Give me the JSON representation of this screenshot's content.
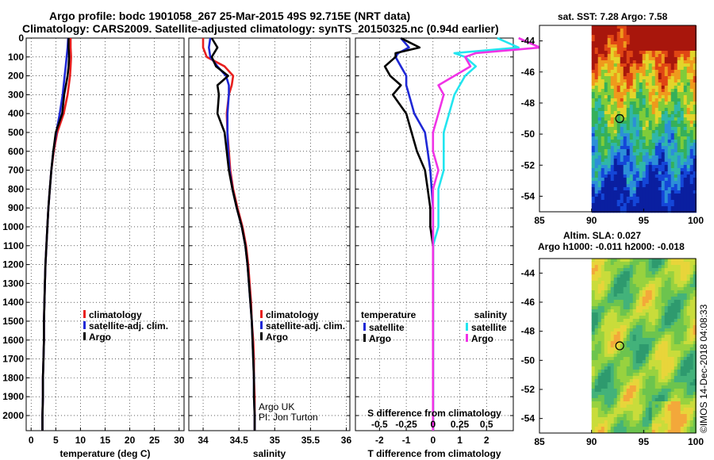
{
  "title": {
    "line1": "Argo profile: bodc 1901058_267 25-Mar-2015 49S 92.715E (NRT data)",
    "line2": "Climatology: CARS2009. Satellite-adjusted climatology: synTS_20150325.nc (0.94d earlier)"
  },
  "colors": {
    "climatology": "#e8201f",
    "satellite": "#1f28d6",
    "argo": "#000000",
    "sat_salinity": "#22e5ef",
    "argo_salinity": "#f032e6"
  },
  "maps": {
    "sst_title": "sat. SST: 7.28 Argo: 7.58",
    "sla_title_1": "Altim. SLA: 0.027",
    "sla_title_2": "Argo h1000: -0.011 h2000: -0.018",
    "lat_ticks": [
      -44,
      -46,
      -48,
      -50,
      -52,
      -54
    ],
    "lon_ticks": [
      85,
      90,
      95,
      100
    ],
    "lat_range": [
      -43,
      -55
    ],
    "lon_range": [
      85,
      100
    ],
    "float_position": {
      "lon": 92.7,
      "lat": -49
    }
  },
  "credit": "©IMOS 14-Dec-2018 04:08:33",
  "chart_data": [
    {
      "type": "line",
      "name": "temperature",
      "xlabel": "temperature (deg C)",
      "ylabel": "",
      "xlim": [
        -1,
        31
      ],
      "ylim": [
        2080,
        0
      ],
      "x_ticks": [
        0,
        5,
        10,
        15,
        20,
        25,
        30
      ],
      "y_ticks": [
        0,
        100,
        200,
        300,
        400,
        500,
        600,
        700,
        800,
        900,
        1000,
        1100,
        1200,
        1300,
        1400,
        1500,
        1600,
        1700,
        1800,
        1900,
        2000
      ],
      "grid": true,
      "legend": [
        "climatology",
        "satellite-adj. clim.",
        "Argo"
      ],
      "legend_position": "bottom-right",
      "depth": [
        0,
        50,
        100,
        150,
        200,
        300,
        400,
        500,
        600,
        700,
        800,
        900,
        1000,
        1100,
        1200,
        1300,
        1400,
        1500,
        1600,
        1700,
        1800,
        1900,
        2000,
        2080
      ],
      "series": [
        {
          "name": "climatology",
          "values": [
            8.0,
            8.0,
            8.1,
            8.0,
            7.9,
            7.4,
            6.6,
            5.3,
            4.6,
            4.1,
            3.8,
            3.5,
            3.3,
            3.1,
            2.9,
            2.8,
            2.7,
            2.6,
            2.6,
            2.5,
            2.4,
            2.4,
            2.3,
            2.3
          ]
        },
        {
          "name": "satellite-adj. clim.",
          "values": [
            7.5,
            7.4,
            7.2,
            7.0,
            6.8,
            6.4,
            5.8,
            5.1,
            4.5,
            4.1,
            3.8,
            3.5,
            3.3,
            3.1,
            2.9,
            2.8,
            2.7,
            2.6,
            2.6,
            2.5,
            2.4,
            2.4,
            2.3,
            2.3
          ]
        },
        {
          "name": "Argo",
          "values": [
            7.6,
            7.6,
            7.7,
            7.6,
            7.4,
            6.7,
            6.3,
            5.0,
            4.5,
            4.1,
            3.8,
            3.5,
            3.3,
            3.1,
            2.9,
            2.8,
            2.7,
            2.6,
            2.6,
            2.5,
            2.4,
            2.4,
            2.3,
            2.3
          ]
        }
      ]
    },
    {
      "type": "line",
      "name": "salinity",
      "xlabel": "salinity",
      "xlim": [
        33.8,
        36.05
      ],
      "ylim": [
        2080,
        0
      ],
      "x_ticks": [
        34,
        34.5,
        35,
        35.5,
        36
      ],
      "grid": true,
      "legend": [
        "climatology",
        "satellite-adj. clim.",
        "Argo"
      ],
      "legend_position": "bottom-right",
      "annotation": [
        "Argo UK",
        "PI: Jon Turton"
      ],
      "depth": [
        0,
        50,
        100,
        150,
        200,
        250,
        300,
        400,
        500,
        600,
        700,
        800,
        900,
        1000,
        1100,
        1200,
        1300,
        1400,
        1500,
        1600,
        1700,
        1800,
        1900,
        2000,
        2080
      ],
      "series": [
        {
          "name": "climatology",
          "values": [
            34.0,
            34.0,
            34.05,
            34.3,
            34.42,
            34.4,
            34.36,
            34.33,
            34.34,
            34.36,
            34.38,
            34.42,
            34.48,
            34.55,
            34.6,
            34.63,
            34.65,
            34.67,
            34.68,
            34.7,
            34.71,
            34.71,
            34.72,
            34.72,
            34.72
          ]
        },
        {
          "name": "satellite-adj. clim.",
          "values": [
            34.1,
            34.08,
            34.1,
            34.2,
            34.32,
            34.36,
            34.36,
            34.34,
            34.34,
            34.35,
            34.37,
            34.41,
            34.47,
            34.54,
            34.59,
            34.62,
            34.64,
            34.66,
            34.68,
            34.69,
            34.7,
            34.71,
            34.71,
            34.72,
            34.72
          ]
        },
        {
          "name": "Argo",
          "values": [
            34.12,
            34.2,
            34.12,
            34.18,
            34.35,
            34.2,
            34.22,
            34.2,
            34.3,
            34.33,
            34.36,
            34.41,
            34.47,
            34.54,
            34.59,
            34.62,
            34.64,
            34.66,
            34.68,
            34.69,
            34.7,
            34.71,
            34.71,
            34.72,
            34.72
          ]
        }
      ]
    },
    {
      "type": "line",
      "name": "difference",
      "xlabel": "T difference from climatology",
      "xlabel_top": "S difference from climatology",
      "xlim": [
        -2.9,
        3.0
      ],
      "ylim": [
        2080,
        0
      ],
      "x_ticks": [
        -2,
        -1,
        0,
        1,
        2
      ],
      "x_ticks_top": [
        "-0.5",
        "-0.25",
        "0",
        "0.25",
        "0.5"
      ],
      "grid": true,
      "legend_temperature_heading": "temperature",
      "legend_salinity_heading": "salinity",
      "legend_temperature": [
        "satellite",
        "Argo"
      ],
      "legend_salinity": [
        "satellite",
        "Argo"
      ],
      "depth": [
        0,
        50,
        80,
        100,
        150,
        200,
        250,
        300,
        400,
        500,
        600,
        700,
        800,
        900,
        1000,
        1100,
        1200,
        1300,
        1400,
        1500,
        1600,
        1700,
        1800,
        1900,
        2000,
        2080
      ],
      "series": [
        {
          "name": "temperature satellite",
          "values": [
            -1.2,
            -0.9,
            -1.3,
            -1.4,
            -1.2,
            -1.0,
            -1.0,
            -0.9,
            -0.7,
            -0.3,
            -0.2,
            -0.1,
            -0.05,
            0,
            0,
            0,
            0,
            0,
            0,
            0,
            0,
            0,
            0,
            0,
            0,
            0
          ]
        },
        {
          "name": "temperature Argo",
          "values": [
            -1.2,
            -0.5,
            -1.4,
            -1.4,
            -1.8,
            -1.6,
            -1.2,
            -1.5,
            -1.0,
            -0.8,
            -0.6,
            -0.3,
            -0.2,
            -0.1,
            -0.1,
            0,
            0,
            0,
            0,
            0,
            0,
            0,
            0,
            0,
            0,
            0
          ]
        },
        {
          "name": "salinity satellite",
          "values": [
            0.6,
            0.8,
            0.2,
            0.3,
            0.4,
            0.3,
            0.25,
            0.2,
            0.15,
            0.1,
            0.1,
            0.1,
            0.05,
            0.05,
            0.05,
            0,
            0,
            0,
            0,
            0,
            0,
            0,
            0,
            0,
            0,
            0
          ]
        },
        {
          "name": "salinity Argo",
          "values": [
            0.8,
            1.0,
            0.4,
            0.3,
            0.35,
            0.2,
            0.05,
            0.1,
            0.05,
            0.0,
            0.0,
            0.05,
            0.0,
            0.0,
            0.0,
            0,
            0,
            0,
            0,
            0,
            0,
            0,
            0,
            0,
            0,
            0
          ]
        }
      ]
    }
  ]
}
